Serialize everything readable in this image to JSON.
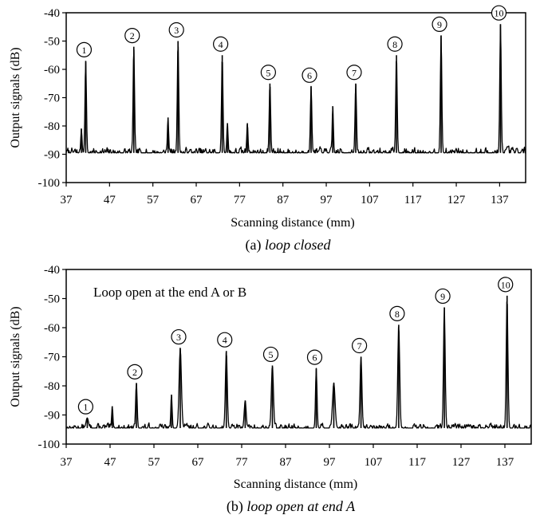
{
  "chart_data": [
    {
      "type": "line",
      "caption_prefix": "(a)",
      "caption_italic": "loop closed",
      "xlabel": "Scanning distance (mm)",
      "ylabel": "Output signals (dB)",
      "xlim": [
        37,
        143
      ],
      "ylim": [
        -100,
        -40
      ],
      "xticks": [
        37,
        47,
        57,
        67,
        77,
        87,
        97,
        107,
        117,
        127,
        137
      ],
      "yticks": [
        -40,
        -50,
        -60,
        -70,
        -80,
        -90,
        -100
      ],
      "xtick_labels": [
        "37",
        "47",
        "57",
        "67",
        "77",
        "87",
        "97",
        "107",
        "117",
        "127",
        "137"
      ],
      "ytick_labels": [
        "-40",
        "-50",
        "-60",
        "-70",
        "-80",
        "-90",
        "-100"
      ],
      "annotation": "",
      "baseline": -89.5,
      "noise": 2.8,
      "seed": 7,
      "peaks": [
        {
          "label": "①",
          "x": 41.5,
          "y": -57,
          "width": 0.35
        },
        {
          "label": "②",
          "x": 52.6,
          "y": -52,
          "width": 0.35
        },
        {
          "label": "③",
          "x": 62.8,
          "y": -50,
          "width": 0.35
        },
        {
          "label": "④",
          "x": 73.0,
          "y": -55,
          "width": 0.35
        },
        {
          "label": "⑤",
          "x": 84.0,
          "y": -65,
          "width": 0.35
        },
        {
          "label": "⑥",
          "x": 93.5,
          "y": -66,
          "width": 0.35
        },
        {
          "label": "⑦",
          "x": 103.8,
          "y": -65,
          "width": 0.35
        },
        {
          "label": "⑧",
          "x": 113.2,
          "y": -55,
          "width": 0.35
        },
        {
          "label": "⑨",
          "x": 123.5,
          "y": -48,
          "width": 0.35
        },
        {
          "label": "⑩",
          "x": 137.2,
          "y": -44,
          "width": 0.35
        }
      ],
      "minor_peaks": [
        {
          "x": 40.5,
          "y": -81,
          "width": 0.3
        },
        {
          "x": 60.5,
          "y": -77,
          "width": 0.3
        },
        {
          "x": 74.2,
          "y": -79,
          "width": 0.3
        },
        {
          "x": 78.8,
          "y": -79,
          "width": 0.3
        },
        {
          "x": 98.5,
          "y": -73,
          "width": 0.3
        }
      ]
    },
    {
      "type": "line",
      "caption_prefix": "(b)",
      "caption_italic": "loop open at end A",
      "xlabel": "Scanning distance (mm)",
      "ylabel": "Output signals (dB)",
      "xlim": [
        37,
        143
      ],
      "ylim": [
        -100,
        -40
      ],
      "xticks": [
        37,
        47,
        57,
        67,
        77,
        87,
        97,
        107,
        117,
        127,
        137
      ],
      "yticks": [
        -40,
        -50,
        -60,
        -70,
        -80,
        -90,
        -100
      ],
      "xtick_labels": [
        "37",
        "47",
        "57",
        "67",
        "77",
        "87",
        "97",
        "107",
        "117",
        "127",
        "137"
      ],
      "ytick_labels": [
        "-40",
        "-50",
        "-60",
        "-70",
        "-80",
        "-90",
        "-100"
      ],
      "annotation": "Loop open at the end A or B",
      "baseline": -94.5,
      "noise": 2.2,
      "seed": 13,
      "peaks": [
        {
          "label": "①",
          "x": 41.8,
          "y": -91,
          "width": 0.6
        },
        {
          "label": "②",
          "x": 53.0,
          "y": -79,
          "width": 0.35
        },
        {
          "label": "③",
          "x": 63.0,
          "y": -67,
          "width": 0.55
        },
        {
          "label": "④",
          "x": 73.5,
          "y": -68,
          "width": 0.45
        },
        {
          "label": "⑤",
          "x": 84.0,
          "y": -73,
          "width": 0.5
        },
        {
          "label": "⑥",
          "x": 94.0,
          "y": -74,
          "width": 0.35
        },
        {
          "label": "⑦",
          "x": 104.2,
          "y": -70,
          "width": 0.45
        },
        {
          "label": "⑧",
          "x": 112.8,
          "y": -59,
          "width": 0.45
        },
        {
          "label": "⑨",
          "x": 123.2,
          "y": -53,
          "width": 0.4
        },
        {
          "label": "⑩",
          "x": 137.5,
          "y": -49,
          "width": 0.4
        }
      ],
      "minor_peaks": [
        {
          "x": 47.5,
          "y": -87,
          "width": 0.3
        },
        {
          "x": 61.0,
          "y": -83,
          "width": 0.3
        },
        {
          "x": 77.8,
          "y": -85,
          "width": 0.45
        },
        {
          "x": 98.0,
          "y": -79,
          "width": 0.6
        }
      ]
    }
  ]
}
